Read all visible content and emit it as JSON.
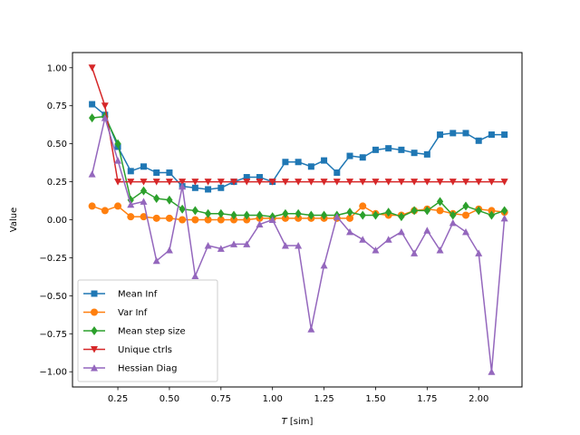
{
  "chart_data": {
    "type": "line",
    "xlabel": "$T$ [sim]",
    "xlabel_parts": [
      "T",
      " [sim]"
    ],
    "ylabel": "Value",
    "xlim": [
      0.03,
      2.21
    ],
    "ylim": [
      -1.1,
      1.1
    ],
    "xticks": [
      0.25,
      0.5,
      0.75,
      1.0,
      1.25,
      1.5,
      1.75,
      2.0
    ],
    "xtick_labels": [
      "0.25",
      "0.50",
      "0.75",
      "1.00",
      "1.25",
      "1.50",
      "1.75",
      "2.00"
    ],
    "yticks": [
      -1.0,
      -0.75,
      -0.5,
      -0.25,
      0.0,
      0.25,
      0.5,
      0.75,
      1.0
    ],
    "ytick_labels": [
      "−1.00",
      "−0.75",
      "−0.50",
      "−0.25",
      "0.00",
      "0.25",
      "0.50",
      "0.75",
      "1.00"
    ],
    "grid": false,
    "legend_position": "lower-left",
    "x": [
      0.125,
      0.1875,
      0.25,
      0.3125,
      0.375,
      0.4375,
      0.5,
      0.5625,
      0.625,
      0.6875,
      0.75,
      0.8125,
      0.875,
      0.9375,
      1.0,
      1.0625,
      1.125,
      1.1875,
      1.25,
      1.3125,
      1.375,
      1.4375,
      1.5,
      1.5625,
      1.625,
      1.6875,
      1.75,
      1.8125,
      1.875,
      1.9375,
      2.0,
      2.0625,
      2.125
    ],
    "series": [
      {
        "name": "Mean Inf",
        "color": "#1f77b4",
        "marker": "square",
        "values": [
          0.76,
          0.69,
          0.48,
          0.32,
          0.35,
          0.31,
          0.31,
          0.22,
          0.21,
          0.2,
          0.21,
          0.25,
          0.28,
          0.28,
          0.25,
          0.38,
          0.38,
          0.35,
          0.39,
          0.31,
          0.42,
          0.41,
          0.46,
          0.47,
          0.46,
          0.44,
          0.43,
          0.56,
          0.57,
          0.57,
          0.52,
          0.56,
          0.56
        ]
      },
      {
        "name": "Var Inf",
        "color": "#ff7f0e",
        "marker": "circle",
        "values": [
          0.09,
          0.06,
          0.09,
          0.02,
          0.02,
          0.01,
          0.01,
          0.0,
          0.0,
          0.0,
          0.0,
          0.0,
          0.0,
          0.01,
          0.01,
          0.01,
          0.01,
          0.01,
          0.01,
          0.01,
          0.01,
          0.09,
          0.04,
          0.03,
          0.03,
          0.06,
          0.07,
          0.06,
          0.04,
          0.03,
          0.07,
          0.06,
          0.05
        ]
      },
      {
        "name": "Mean step size",
        "color": "#2ca02c",
        "marker": "diamond",
        "values": [
          0.67,
          0.68,
          0.5,
          0.13,
          0.19,
          0.14,
          0.13,
          0.07,
          0.06,
          0.04,
          0.04,
          0.03,
          0.03,
          0.03,
          0.02,
          0.04,
          0.04,
          0.03,
          0.03,
          0.03,
          0.05,
          0.03,
          0.03,
          0.05,
          0.02,
          0.06,
          0.06,
          0.12,
          0.03,
          0.09,
          0.06,
          0.03,
          0.06
        ]
      },
      {
        "name": "Unique ctrls",
        "color": "#d62728",
        "marker": "triangle-down",
        "values": [
          1.0,
          0.75,
          0.25,
          0.25,
          0.25,
          0.25,
          0.25,
          0.25,
          0.25,
          0.25,
          0.25,
          0.25,
          0.25,
          0.25,
          0.25,
          0.25,
          0.25,
          0.25,
          0.25,
          0.25,
          0.25,
          0.25,
          0.25,
          0.25,
          0.25,
          0.25,
          0.25,
          0.25,
          0.25,
          0.25,
          0.25,
          0.25,
          0.25
        ]
      },
      {
        "name": "Hessian Diag",
        "color": "#9467bd",
        "marker": "triangle-up",
        "values": [
          0.3,
          0.67,
          0.39,
          0.1,
          0.12,
          -0.27,
          -0.2,
          0.22,
          -0.37,
          -0.17,
          -0.19,
          -0.16,
          -0.16,
          -0.03,
          0.0,
          -0.17,
          -0.17,
          -0.72,
          -0.3,
          0.02,
          -0.08,
          -0.13,
          -0.2,
          -0.13,
          -0.08,
          -0.22,
          -0.07,
          -0.2,
          -0.02,
          -0.08,
          -0.22,
          -1.0,
          0.01
        ]
      }
    ]
  }
}
